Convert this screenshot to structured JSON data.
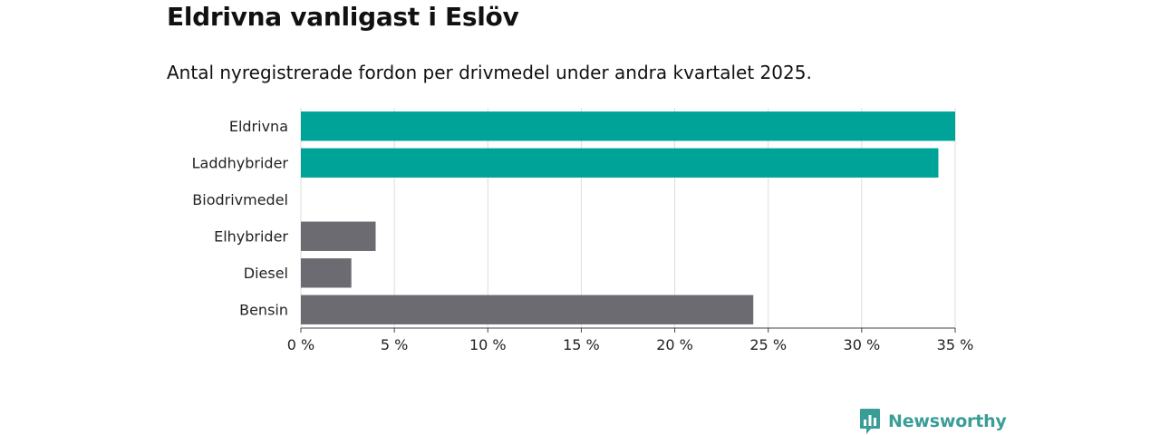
{
  "header": {
    "title": "Eldrivna vanligast i Eslöv",
    "subtitle": "Antal nyregistrerade fordon per drivmedel under andra kvartalet 2025."
  },
  "chart_data": {
    "type": "bar",
    "orientation": "horizontal",
    "categories": [
      "Eldrivna",
      "Laddhybrider",
      "Biodrivmedel",
      "Elhybrider",
      "Diesel",
      "Bensin"
    ],
    "values": [
      35.0,
      34.1,
      0,
      4.0,
      2.7,
      24.2
    ],
    "bar_colors": [
      "#00a398",
      "#00a398",
      "#6c6b72",
      "#6c6b72",
      "#6c6b72",
      "#6c6b72"
    ],
    "xlim": [
      0,
      35
    ],
    "x_ticks": [
      0,
      5,
      10,
      15,
      20,
      25,
      30,
      35
    ],
    "x_tick_labels": [
      "0 %",
      "5 %",
      "10 %",
      "15 %",
      "20 %",
      "25 %",
      "30 %",
      "35 %"
    ],
    "grid": true
  },
  "brand": {
    "name": "Newsworthy",
    "color": "#3a9e97",
    "icon": "bar-chart-logo-icon"
  }
}
